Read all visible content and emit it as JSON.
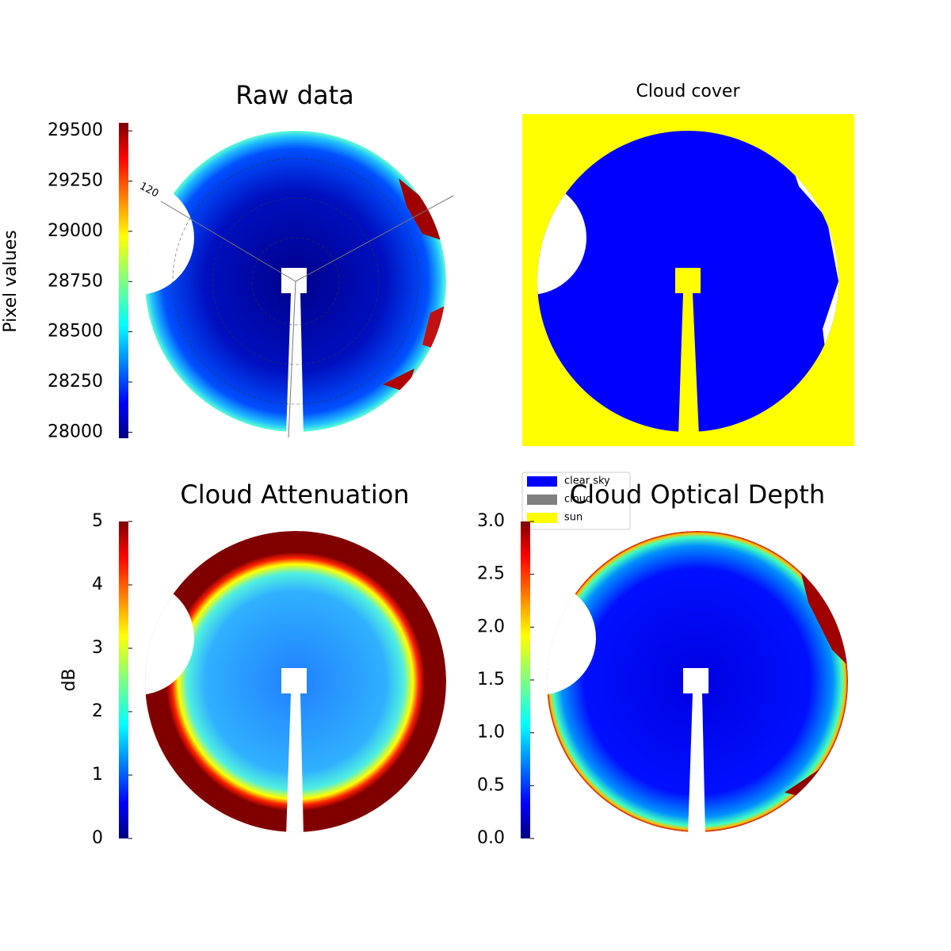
{
  "chart_data": [
    {
      "type": "image",
      "title": "Raw data",
      "colorbar": {
        "label": "Pixel values",
        "lim": [
          27970,
          29540
        ],
        "ticks": [
          28000,
          28250,
          28500,
          28750,
          29000,
          29250,
          29500
        ]
      },
      "annotation": "120"
    },
    {
      "type": "image",
      "title": "Cloud cover",
      "legend": [
        {
          "name": "clear sky",
          "color": "#0000ff"
        },
        {
          "name": "cloud",
          "color": "#808080"
        },
        {
          "name": "sun",
          "color": "#ffff00"
        }
      ]
    },
    {
      "type": "image",
      "title": "Cloud Attenuation",
      "colorbar": {
        "label": "dB",
        "lim": [
          0,
          5
        ],
        "ticks": [
          0,
          1,
          2,
          3,
          4,
          5
        ]
      }
    },
    {
      "type": "image",
      "title": "Cloud Optical Depth",
      "colorbar": {
        "lim": [
          0,
          3
        ],
        "ticks": [
          {
            "value": 0,
            "label": "0.0"
          },
          {
            "value": 0.5,
            "label": "0.5"
          },
          {
            "value": 1,
            "label": "1.0"
          },
          {
            "value": 1.5,
            "label": "1.5"
          },
          {
            "value": 2,
            "label": "2.0"
          },
          {
            "value": 2.5,
            "label": "2.5"
          },
          {
            "value": 3,
            "label": "3.0"
          }
        ]
      }
    }
  ]
}
